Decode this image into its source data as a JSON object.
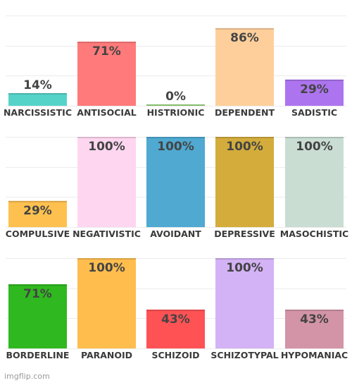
{
  "watermark": "imgflip.com",
  "chart_data": [
    {
      "type": "bar",
      "categories": [
        "NARCISSISTIC",
        "ANTISOCIAL",
        "HISTRIONIC",
        "DEPENDENT",
        "SADISTIC"
      ],
      "values": [
        14,
        71,
        0,
        86,
        29
      ],
      "value_labels": [
        "14%",
        "71%",
        "0%",
        "86%",
        "29%"
      ],
      "colors": [
        "#56d3c9",
        "#ff7a7a",
        "#9be07f",
        "#ffcf9b",
        "#ad74ef"
      ],
      "ylim": [
        0,
        100
      ],
      "grid": true
    },
    {
      "type": "bar",
      "categories": [
        "COMPULSIVE",
        "NEGATIVISTIC",
        "AVOIDANT",
        "DEPRESSIVE",
        "MASOCHISTIC"
      ],
      "values": [
        29,
        100,
        100,
        100,
        100
      ],
      "value_labels": [
        "29%",
        "100%",
        "100%",
        "100%",
        "100%"
      ],
      "colors": [
        "#fec14f",
        "#ffd6f0",
        "#4fa9d1",
        "#d3ac3c",
        "#c9ddd3"
      ],
      "ylim": [
        0,
        100
      ],
      "grid": true
    },
    {
      "type": "bar",
      "categories": [
        "BORDERLINE",
        "PARANOID",
        "SCHIZOID",
        "SCHIZOTYPAL",
        "HYPOMANIAC"
      ],
      "values": [
        71,
        100,
        43,
        100,
        43
      ],
      "value_labels": [
        "71%",
        "100%",
        "43%",
        "100%",
        "43%"
      ],
      "colors": [
        "#2fb81f",
        "#ffbd4e",
        "#ff5254",
        "#d3b2f5",
        "#d294a6"
      ],
      "ylim": [
        0,
        100
      ],
      "grid": true
    }
  ]
}
